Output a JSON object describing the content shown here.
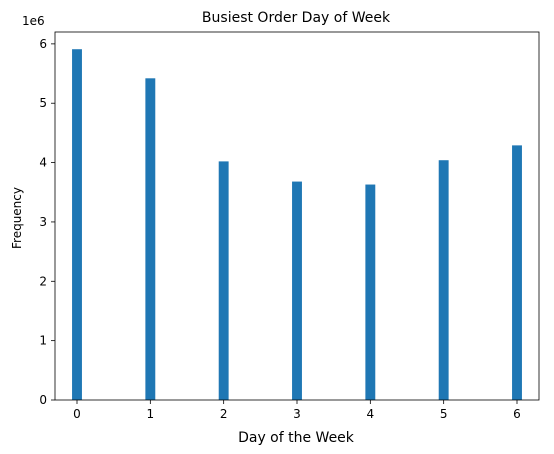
{
  "chart_data": {
    "type": "bar",
    "title": "Busiest Order Day of Week",
    "xlabel": "Day of the Week",
    "ylabel": "Frequency",
    "y_offset_label": "1e6",
    "categories": [
      0,
      1,
      2,
      3,
      4,
      5,
      6
    ],
    "values": [
      5910000,
      5420000,
      4020000,
      3680000,
      3630000,
      4040000,
      4290000
    ],
    "xlim": [
      -0.3,
      6.3
    ],
    "ylim": [
      0,
      6200000
    ],
    "xticks": [
      "0",
      "1",
      "2",
      "3",
      "4",
      "5",
      "6"
    ],
    "yticks": [
      "0",
      "1",
      "2",
      "3",
      "4",
      "5",
      "6"
    ],
    "ytick_values": [
      0,
      1000000,
      2000000,
      3000000,
      4000000,
      5000000,
      6000000
    ],
    "bar_color": "#1f77b4",
    "grid": false,
    "legend": "none"
  }
}
